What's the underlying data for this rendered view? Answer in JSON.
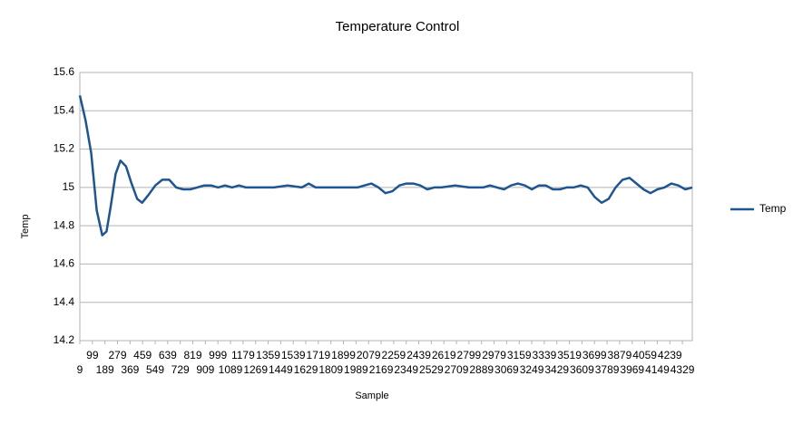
{
  "chart_data": {
    "type": "line",
    "title": "Temperature Control",
    "x_label": "Sample",
    "y_label": "Temp",
    "x": [
      9,
      50,
      90,
      130,
      170,
      200,
      230,
      265,
      300,
      340,
      380,
      420,
      455,
      500,
      550,
      600,
      650,
      700,
      750,
      800,
      850,
      900,
      950,
      1000,
      1050,
      1100,
      1150,
      1200,
      1300,
      1400,
      1500,
      1600,
      1650,
      1700,
      1800,
      1900,
      2000,
      2050,
      2100,
      2150,
      2200,
      2250,
      2300,
      2350,
      2400,
      2450,
      2500,
      2550,
      2600,
      2700,
      2800,
      2900,
      2950,
      3000,
      3050,
      3100,
      3150,
      3200,
      3250,
      3300,
      3350,
      3400,
      3450,
      3500,
      3550,
      3600,
      3650,
      3700,
      3750,
      3800,
      3850,
      3900,
      3950,
      4000,
      4050,
      4100,
      4150,
      4200,
      4250,
      4300,
      4350,
      4400
    ],
    "series": [
      {
        "name": "Temp",
        "color": "#1f5590",
        "values": [
          15.48,
          15.35,
          15.18,
          14.88,
          14.75,
          14.77,
          14.9,
          15.07,
          15.14,
          15.11,
          15.02,
          14.94,
          14.92,
          14.96,
          15.01,
          15.04,
          15.04,
          15.0,
          14.99,
          14.99,
          15.0,
          15.01,
          15.01,
          15.0,
          15.01,
          15.0,
          15.01,
          15.0,
          15.0,
          15.0,
          15.01,
          15.0,
          15.02,
          15.0,
          15.0,
          15.0,
          15.0,
          15.01,
          15.02,
          15.0,
          14.97,
          14.98,
          15.01,
          15.02,
          15.02,
          15.01,
          14.99,
          15.0,
          15.0,
          15.01,
          15.0,
          15.0,
          15.01,
          15.0,
          14.99,
          15.01,
          15.02,
          15.01,
          14.99,
          15.01,
          15.01,
          14.99,
          14.99,
          15.0,
          15.0,
          15.01,
          15.0,
          14.95,
          14.92,
          14.94,
          15.0,
          15.04,
          15.05,
          15.02,
          14.99,
          14.97,
          14.99,
          15.0,
          15.02,
          15.01,
          14.99,
          15.0
        ]
      }
    ],
    "xlim": [
      9,
      4400
    ],
    "xticks": [
      9,
      99,
      189,
      279,
      369,
      459,
      549,
      639,
      729,
      819,
      909,
      999,
      1089,
      1179,
      1269,
      1359,
      1449,
      1539,
      1629,
      1719,
      1809,
      1899,
      1989,
      2079,
      2169,
      2259,
      2349,
      2439,
      2529,
      2619,
      2709,
      2799,
      2889,
      2979,
      3069,
      3159,
      3249,
      3339,
      3429,
      3519,
      3609,
      3699,
      3789,
      3879,
      3969,
      4059,
      4149,
      4239,
      4329
    ],
    "ylim": [
      14.2,
      15.6
    ],
    "yticks": [
      14.2,
      14.4,
      14.6,
      14.8,
      15,
      15.2,
      15.4,
      15.6
    ],
    "grid": true,
    "legend": "right"
  }
}
